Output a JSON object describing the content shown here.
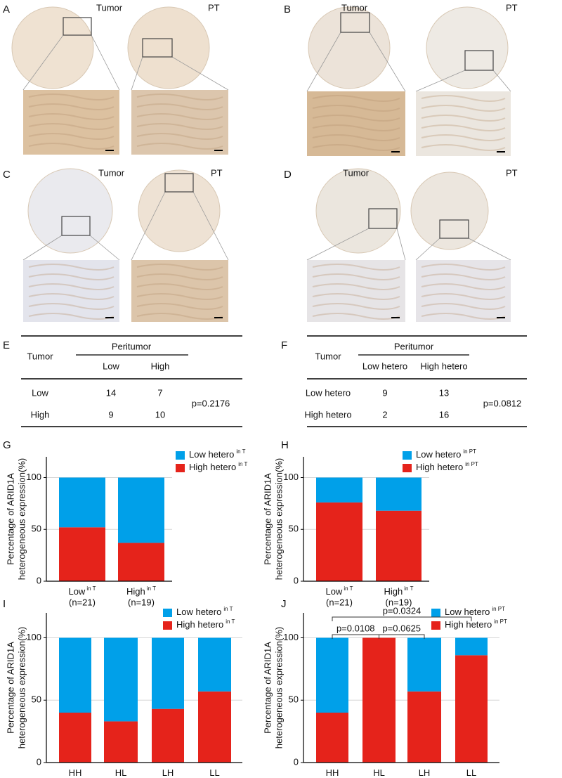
{
  "panels": [
    {
      "letter": "A",
      "labels": [
        "Tumor",
        "PT"
      ]
    },
    {
      "letter": "B",
      "labels": [
        "Tumor",
        "PT"
      ]
    },
    {
      "letter": "C",
      "labels": [
        "Tumor",
        "PT"
      ]
    },
    {
      "letter": "D",
      "labels": [
        "Tumor",
        "PT"
      ]
    }
  ],
  "tables": [
    {
      "letter": "E",
      "row_header": "Tumor",
      "col_group": "Peritumor",
      "columns": [
        "Low",
        "High"
      ],
      "rows": [
        {
          "label": "Low",
          "values": [
            14,
            7
          ]
        },
        {
          "label": "High",
          "values": [
            9,
            10
          ]
        }
      ],
      "p_value": "p=0.2176"
    },
    {
      "letter": "F",
      "row_header": "Tumor",
      "col_group": "Peritumor",
      "columns": [
        "Low hetero",
        "High hetero"
      ],
      "rows": [
        {
          "label": "Low hetero",
          "values": [
            9,
            13
          ]
        },
        {
          "label": "High hetero",
          "values": [
            2,
            16
          ]
        }
      ],
      "p_value": "p=0.0812"
    }
  ],
  "chart_data": [
    {
      "type": "bar",
      "stacked": true,
      "letter": "G",
      "ylabel": [
        "Percentage of ARID1A",
        "heterogeneous expression(%)"
      ],
      "categories": [
        "Low",
        "High"
      ],
      "category_superscripts": [
        "in T",
        "in T"
      ],
      "category_notes": [
        "(n=21)",
        "(n=19)"
      ],
      "series": [
        {
          "name": "Low hetero",
          "superscript": "in T",
          "color": "#00a0e9",
          "values": [
            48,
            63
          ]
        },
        {
          "name": "High hetero",
          "superscript": "in T",
          "color": "#e5231b",
          "values": [
            52,
            37
          ]
        }
      ],
      "ylim": [
        0,
        120
      ],
      "yticks": [
        0,
        50,
        100
      ],
      "grid": true
    },
    {
      "type": "bar",
      "stacked": true,
      "letter": "H",
      "ylabel": [
        "Percentage of ARID1A",
        "heterogeneous expression(%)"
      ],
      "categories": [
        "Low",
        "High"
      ],
      "category_superscripts": [
        "in T",
        "in T"
      ],
      "category_notes": [
        "(n=21)",
        "(n=19)"
      ],
      "series": [
        {
          "name": "Low hetero",
          "superscript": "in PT",
          "color": "#00a0e9",
          "values": [
            24,
            32
          ]
        },
        {
          "name": "High hetero",
          "superscript": "in PT",
          "color": "#e5231b",
          "values": [
            76,
            68
          ]
        }
      ],
      "ylim": [
        0,
        120
      ],
      "yticks": [
        0,
        50,
        100
      ],
      "grid": true
    },
    {
      "type": "bar",
      "stacked": true,
      "letter": "I",
      "ylabel": [
        "Percentage of ARID1A",
        "heterogeneous expression(%)"
      ],
      "categories": [
        "HH",
        "HL",
        "LH",
        "LL"
      ],
      "series": [
        {
          "name": "Low hetero",
          "superscript": "in T",
          "color": "#00a0e9",
          "values": [
            60,
            67,
            57,
            43
          ]
        },
        {
          "name": "High hetero",
          "superscript": "in T",
          "color": "#e5231b",
          "values": [
            40,
            33,
            43,
            57
          ]
        }
      ],
      "ylim": [
        0,
        120
      ],
      "yticks": [
        0,
        50,
        100
      ],
      "grid": true
    },
    {
      "type": "bar",
      "stacked": true,
      "letter": "J",
      "ylabel": [
        "Percentage of ARID1A",
        "heterogeneous expression(%)"
      ],
      "categories": [
        "HH",
        "HL",
        "LH",
        "LL"
      ],
      "series": [
        {
          "name": "Low hetero",
          "superscript": "in PT",
          "color": "#00a0e9",
          "values": [
            60,
            0,
            43,
            14
          ]
        },
        {
          "name": "High hetero",
          "superscript": "in PT",
          "color": "#e5231b",
          "values": [
            40,
            100,
            57,
            86
          ]
        }
      ],
      "ylim": [
        0,
        120
      ],
      "yticks": [
        0,
        50,
        100
      ],
      "grid": true,
      "annotations": [
        {
          "text": "p=0.0108",
          "between": [
            "HH",
            "HL"
          ]
        },
        {
          "text": "p=0.0625",
          "between": [
            "HL",
            "LH"
          ]
        },
        {
          "text": "p=0.0324",
          "between": [
            "HH",
            "LL"
          ]
        }
      ]
    }
  ]
}
